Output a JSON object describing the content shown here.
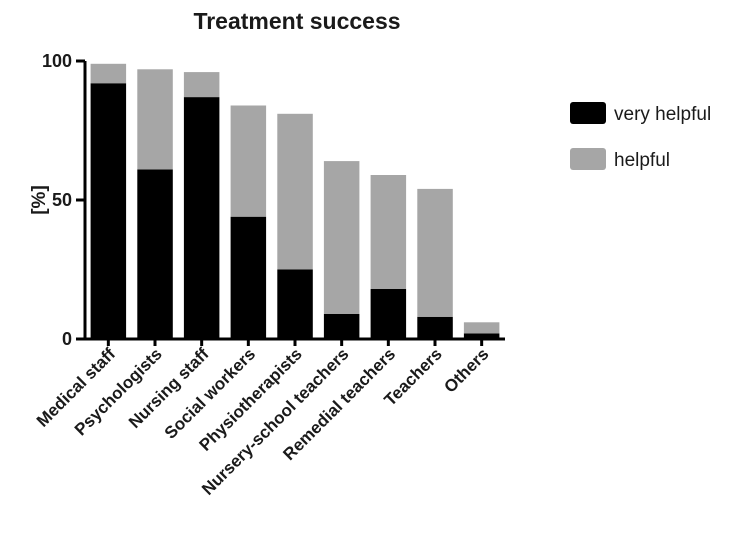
{
  "chart_data": {
    "type": "bar",
    "stacked": true,
    "title": "Treatment success",
    "xlabel": "",
    "ylabel": "[%]",
    "ylim": [
      0,
      100
    ],
    "yticks": [
      0,
      50,
      100
    ],
    "categories": [
      "Medical staff",
      "Psychologists",
      "Nursing staff",
      "Social workers",
      "Physiotherapists",
      "Nursery-school teachers",
      "Remedial teachers",
      "Teachers",
      "Others"
    ],
    "series": [
      {
        "name": "very helpful",
        "color": "#000000",
        "values": [
          92,
          61,
          87,
          44,
          25,
          9,
          18,
          8,
          2
        ]
      },
      {
        "name": "helpful",
        "color": "#a6a6a6",
        "values": [
          7,
          36,
          9,
          40,
          56,
          55,
          41,
          46,
          4
        ]
      }
    ],
    "legend_position": "right",
    "grid": false
  }
}
